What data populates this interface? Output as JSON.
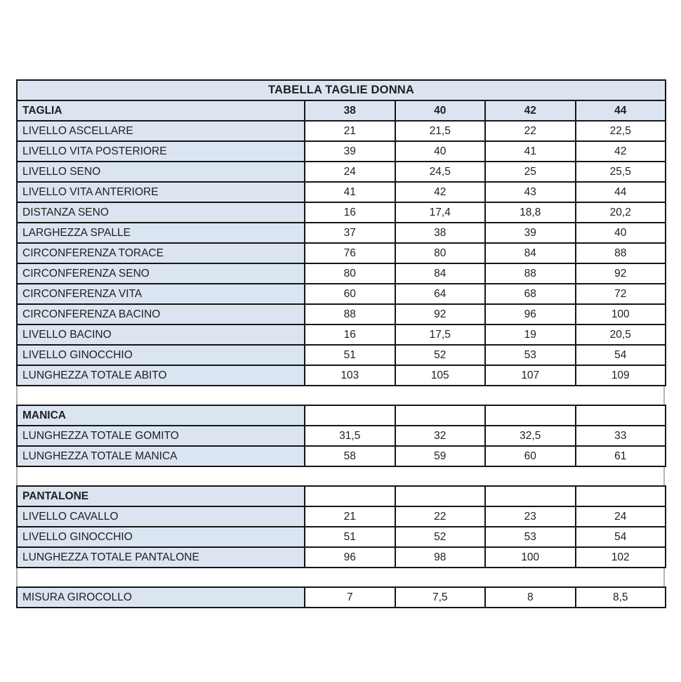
{
  "title": "TABELLA TAGLIE DONNA",
  "colors": {
    "label_cell_blue": "#dbe5f1",
    "border_black": "#161616",
    "gap_line_gray": "#b5b5b5"
  },
  "columns": [
    "38",
    "40",
    "42",
    "44"
  ],
  "main": {
    "header_label": "TAGLIA",
    "rows": [
      {
        "label": "LIVELLO ASCELLARE",
        "values": [
          "21",
          "21,5",
          "22",
          "22,5"
        ]
      },
      {
        "label": "LIVELLO VITA POSTERIORE",
        "values": [
          "39",
          "40",
          "41",
          "42"
        ]
      },
      {
        "label": "LIVELLO SENO",
        "values": [
          "24",
          "24,5",
          "25",
          "25,5"
        ]
      },
      {
        "label": "LIVELLO VITA ANTERIORE",
        "values": [
          "41",
          "42",
          "43",
          "44"
        ]
      },
      {
        "label": "DISTANZA SENO",
        "values": [
          "16",
          "17,4",
          "18,8",
          "20,2"
        ]
      },
      {
        "label": "LARGHEZZA SPALLE",
        "values": [
          "37",
          "38",
          "39",
          "40"
        ]
      },
      {
        "label": "CIRCONFERENZA TORACE",
        "values": [
          "76",
          "80",
          "84",
          "88"
        ]
      },
      {
        "label": "CIRCONFERENZA SENO",
        "values": [
          "80",
          "84",
          "88",
          "92"
        ]
      },
      {
        "label": "CIRCONFERENZA VITA",
        "values": [
          "60",
          "64",
          "68",
          "72"
        ]
      },
      {
        "label": "CIRCONFERENZA BACINO",
        "values": [
          "88",
          "92",
          "96",
          "100"
        ]
      },
      {
        "label": "LIVELLO BACINO",
        "values": [
          "16",
          "17,5",
          "19",
          "20,5"
        ]
      },
      {
        "label": "LIVELLO GINOCCHIO",
        "values": [
          "51",
          "52",
          "53",
          "54"
        ]
      },
      {
        "label": "LUNGHEZZA TOTALE ABITO",
        "values": [
          "103",
          "105",
          "107",
          "109"
        ]
      }
    ]
  },
  "manica": {
    "section_label": "MANICA",
    "rows": [
      {
        "label": "LUNGHEZZA TOTALE GOMITO",
        "values": [
          "31,5",
          "32",
          "32,5",
          "33"
        ]
      },
      {
        "label": "LUNGHEZZA TOTALE MANICA",
        "values": [
          "58",
          "59",
          "60",
          "61"
        ]
      }
    ]
  },
  "pantalone": {
    "section_label": "PANTALONE",
    "rows": [
      {
        "label": "LIVELLO CAVALLO",
        "values": [
          "21",
          "22",
          "23",
          "24"
        ]
      },
      {
        "label": "LIVELLO GINOCCHIO",
        "values": [
          "51",
          "52",
          "53",
          "54"
        ]
      },
      {
        "label": "LUNGHEZZA TOTALE PANTALONE",
        "values": [
          "96",
          "98",
          "100",
          "102"
        ]
      }
    ]
  },
  "girocollo": {
    "label": "MISURA GIROCOLLO",
    "values": [
      "7",
      "7,5",
      "8",
      "8,5"
    ]
  }
}
